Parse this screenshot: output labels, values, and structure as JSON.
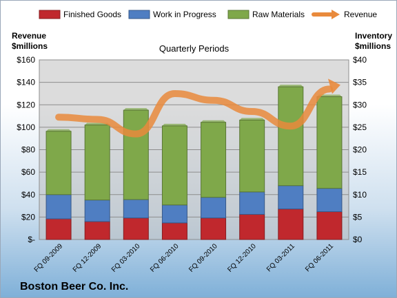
{
  "chart_data": {
    "type": "bar",
    "stacked": true,
    "title": "Quarterly Periods",
    "footer": "Boston Beer Co. Inc.",
    "ylabel_left": [
      "Revenue",
      "$millions"
    ],
    "ylabel_right": [
      "Inventory",
      "$millions"
    ],
    "categories": [
      "FQ 09-2009",
      "FQ 12-2009",
      "FQ 03-2010",
      "FQ 06-2010",
      "FQ 09-2010",
      "FQ 12-2010",
      "FQ 03-2011",
      "FQ 06-2011"
    ],
    "left_axis": {
      "min": 0,
      "max": 160,
      "step": 20,
      "tick_labels": [
        "$-",
        "$20",
        "$40",
        "$60",
        "$80",
        "$100",
        "$120",
        "$140",
        "$160"
      ]
    },
    "right_axis": {
      "min": 0,
      "max": 40,
      "step": 5,
      "tick_labels": [
        "$0",
        "$5",
        "$10",
        "$15",
        "$20",
        "$25",
        "$30",
        "$35",
        "$40"
      ]
    },
    "series": [
      {
        "name": "Finished Goods",
        "type": "bar",
        "axis": "right",
        "color": "#c0282d",
        "values": [
          4.6,
          4.0,
          4.8,
          3.7,
          4.8,
          5.6,
          6.8,
          6.2
        ]
      },
      {
        "name": "Work in Progress",
        "type": "bar",
        "axis": "right",
        "color": "#4f7ec2",
        "values": [
          5.4,
          4.8,
          4.1,
          4.0,
          4.6,
          5.0,
          5.2,
          5.2
        ]
      },
      {
        "name": "Raw Materials",
        "type": "bar",
        "axis": "right",
        "color": "#7fa84a",
        "values": [
          14.1,
          16.7,
          19.9,
          17.6,
          16.7,
          16.0,
          22.0,
          20.4
        ]
      },
      {
        "name": "Revenue",
        "type": "line",
        "axis": "left",
        "color": "#e98a3c",
        "values": [
          109,
          107,
          94,
          130,
          124,
          114,
          101,
          134
        ]
      }
    ],
    "legend": "top",
    "grid": true
  }
}
